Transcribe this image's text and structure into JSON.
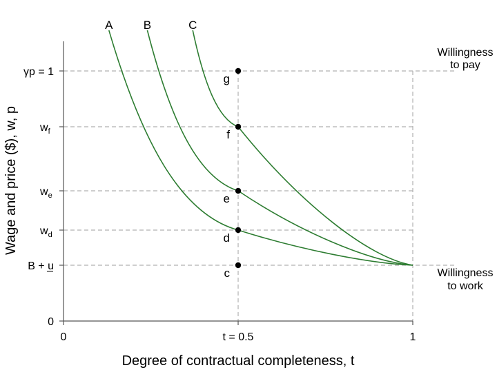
{
  "chart_data": {
    "type": "line",
    "xlabel": "Degree of contractual completeness, t",
    "ylabel": "Wage and  price ($), w, p",
    "xlim": [
      0,
      1
    ],
    "ylim": [
      0,
      1.15
    ],
    "grid": false,
    "x_ticks": [
      {
        "value": 0,
        "label": "0"
      },
      {
        "value": 0.5,
        "label": "t = 0.5"
      },
      {
        "value": 1,
        "label": "1"
      }
    ],
    "y_ticks": [
      {
        "value": 0,
        "main": "0",
        "sub": ""
      },
      {
        "value": 0.27,
        "main": "B + u",
        "sub": ""
      },
      {
        "value": 0.44,
        "main": "w",
        "sub": "d"
      },
      {
        "value": 0.63,
        "main": "w",
        "sub": "e"
      },
      {
        "value": 0.94,
        "main": "w",
        "sub": "f"
      },
      {
        "value": 1.21,
        "main": "γp = 1",
        "sub": ""
      }
    ],
    "series": [
      {
        "name": "A",
        "color": "#2e7d32",
        "t_start": 0.13
      },
      {
        "name": "B",
        "color": "#2e7d32",
        "t_start": 0.24
      },
      {
        "name": "C",
        "color": "#2e7d32",
        "t_start": 0.37
      }
    ],
    "curve_endpoint": {
      "x": 1,
      "y": 0.27
    },
    "points": [
      {
        "label": "g",
        "x": 0.5,
        "y": 1.21
      },
      {
        "label": "f",
        "x": 0.5,
        "y": 0.94
      },
      {
        "label": "e",
        "x": 0.5,
        "y": 0.63
      },
      {
        "label": "d",
        "x": 0.5,
        "y": 0.44
      },
      {
        "label": "c",
        "x": 0.5,
        "y": 0.27
      }
    ],
    "annotations": {
      "willingness_to_pay": [
        "Willingness",
        "to pay"
      ],
      "willingness_to_work": [
        "Willingness",
        "to work"
      ]
    },
    "line_color": "#2e7d32",
    "guide_color": "#b0b0b0"
  }
}
